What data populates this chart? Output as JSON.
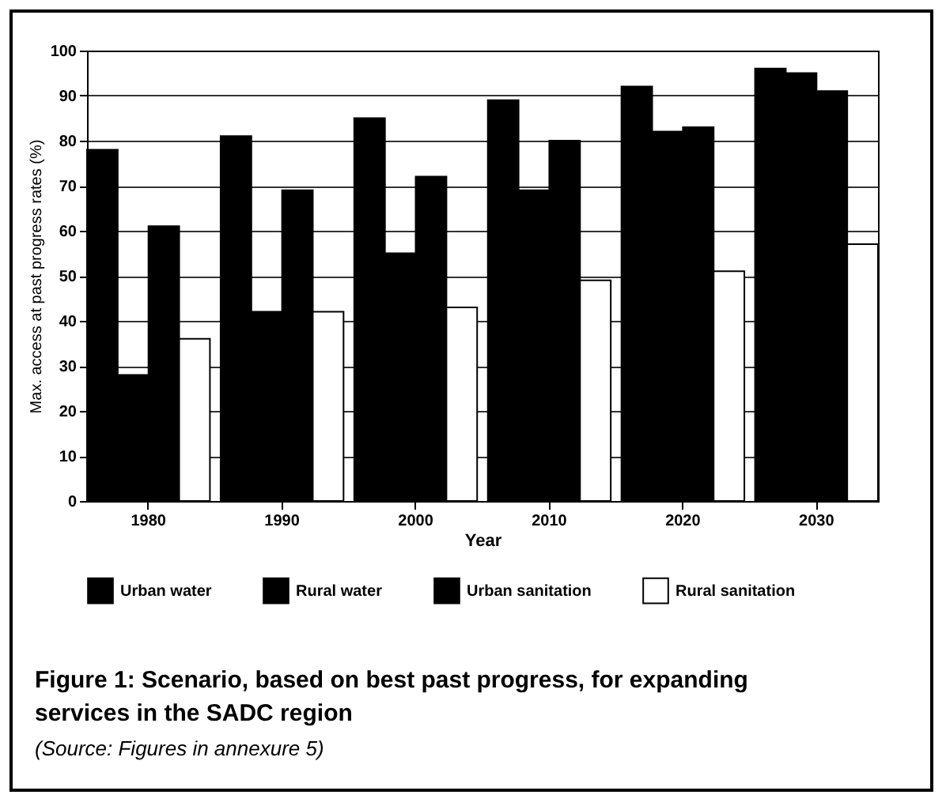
{
  "chart_data": {
    "type": "bar",
    "title": "Figure 1: Scenario, based on best past progress, for expanding services in the SADC region",
    "xlabel": "Year",
    "ylabel": "Max. access at past progress rates (%)",
    "categories": [
      "1980",
      "1990",
      "2000",
      "2010",
      "2020",
      "2030"
    ],
    "series": [
      {
        "name": "Urban water",
        "color": "#000000",
        "values": [
          78,
          81,
          85,
          89,
          92,
          96
        ]
      },
      {
        "name": "Rural water",
        "color": "#000000",
        "values": [
          28,
          42,
          55,
          69,
          82,
          95
        ]
      },
      {
        "name": "Urban sanitation",
        "color": "#000000",
        "values": [
          61,
          69,
          72,
          80,
          83,
          91
        ]
      },
      {
        "name": "Rural sanitation",
        "color": "#ffffff",
        "values": [
          36,
          42,
          43,
          49,
          51,
          57
        ]
      }
    ],
    "ylim": [
      0,
      100
    ],
    "yticks": [
      0,
      10,
      20,
      30,
      40,
      50,
      60,
      70,
      80,
      90,
      100
    ],
    "grid": "y",
    "legend": "bottom",
    "annotations": [
      "(Source: Figures in annexure 5)"
    ]
  }
}
